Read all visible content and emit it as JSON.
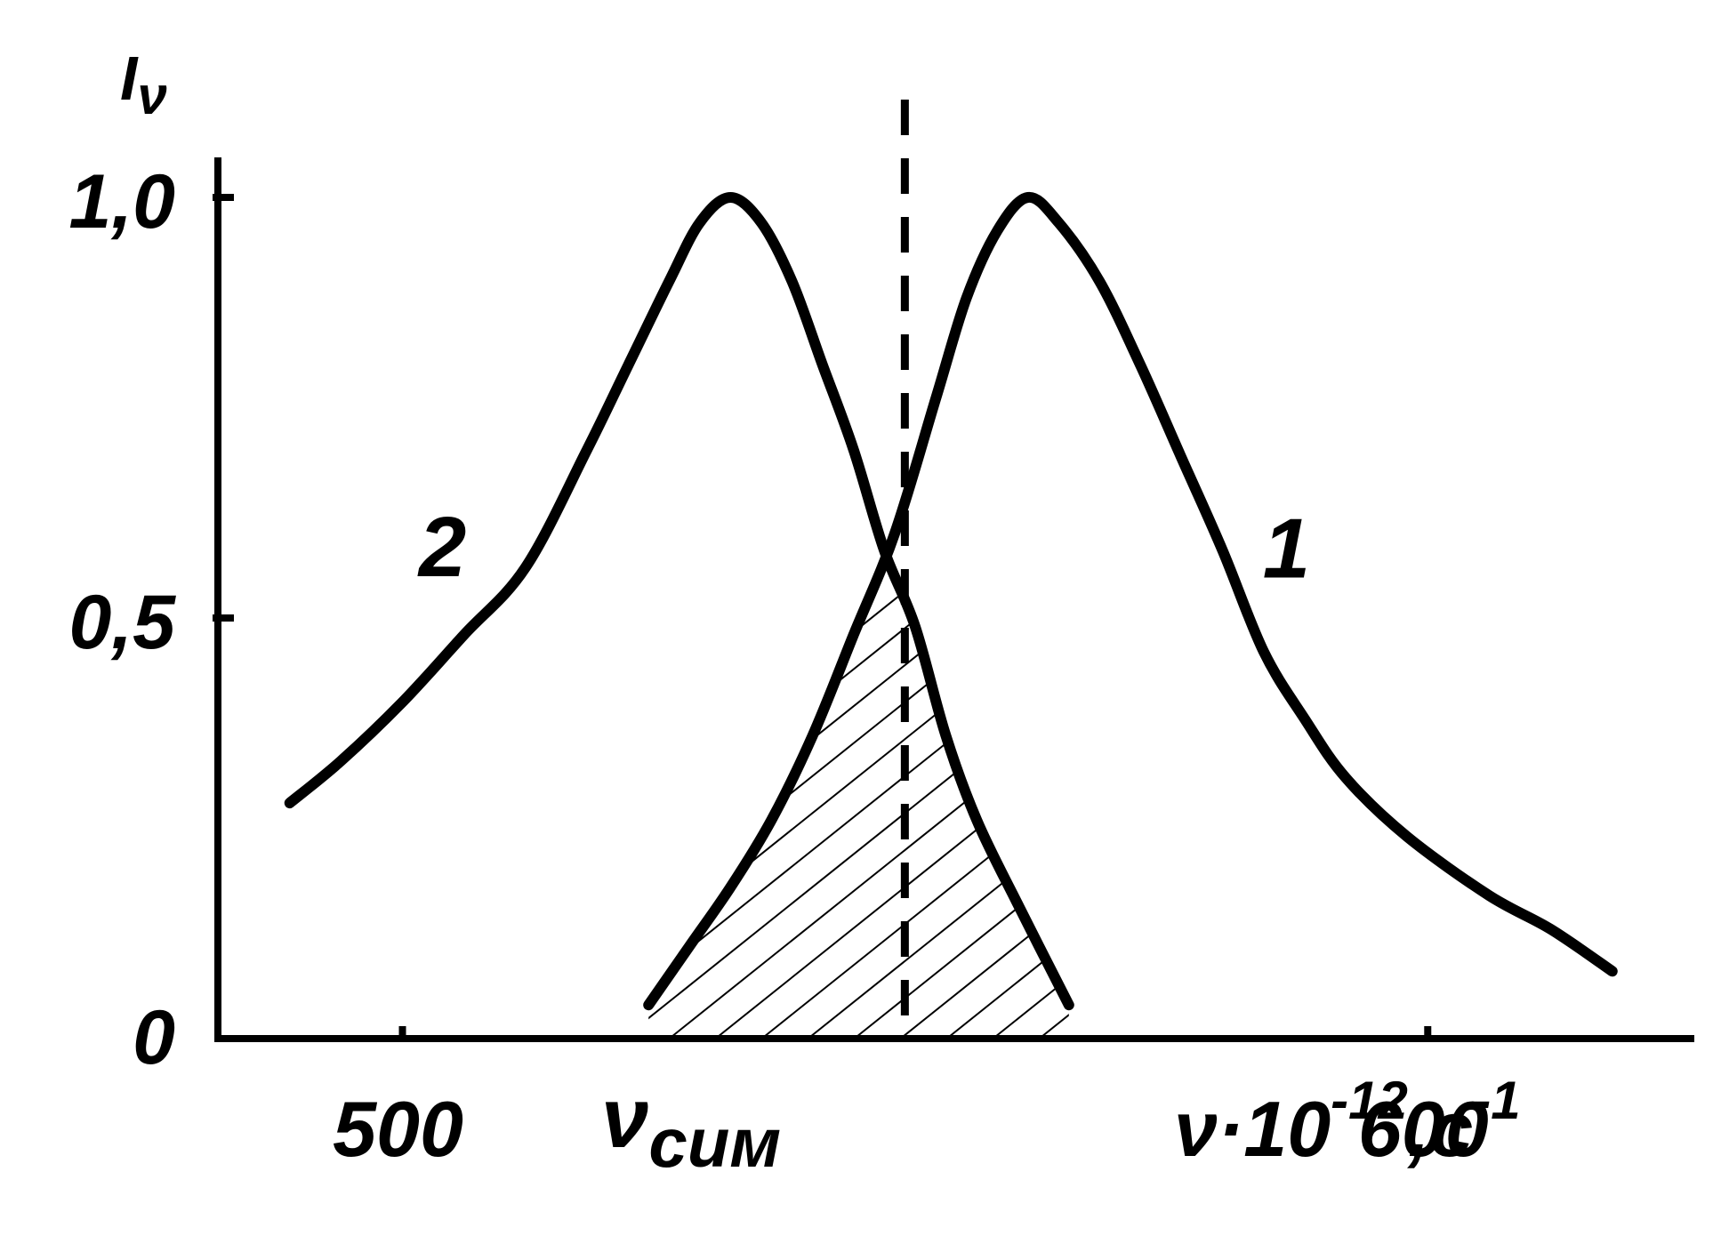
{
  "chart_data": {
    "type": "line",
    "title": "",
    "ylabel": {
      "base": "I",
      "sub": "ν"
    },
    "xlabel": {
      "symbol": "ν",
      "factor": "·10",
      "factor_exp": "-12",
      "unit": ",с",
      "unit_exp": "-1"
    },
    "xlim": [
      482,
      626
    ],
    "ylim": [
      0,
      1.0
    ],
    "x_ticks": [
      {
        "value": 500,
        "label": "500"
      },
      {
        "value": 600,
        "label": "600"
      }
    ],
    "y_ticks": [
      {
        "value": 0,
        "label": "0"
      },
      {
        "value": 0.5,
        "label": "0,5"
      },
      {
        "value": 1.0,
        "label": "1,0"
      }
    ],
    "marked_x": {
      "value": 549,
      "label_symbol": "ν",
      "label_sub": "сим",
      "style": "dashed"
    },
    "shaded_region": "overlap of curves 1 and 2 around ν_сим",
    "series": [
      {
        "name": "1",
        "x": [
          524,
          528,
          532,
          536,
          540,
          544,
          548,
          552,
          555,
          558,
          561,
          564,
          568,
          572,
          576,
          580,
          584,
          588,
          592,
          598,
          606,
          612,
          618
        ],
        "y": [
          0.04,
          0.11,
          0.18,
          0.26,
          0.36,
          0.48,
          0.6,
          0.76,
          0.88,
          0.96,
          1.0,
          0.97,
          0.9,
          0.8,
          0.69,
          0.58,
          0.46,
          0.38,
          0.31,
          0.24,
          0.17,
          0.13,
          0.08
        ]
      },
      {
        "name": "2",
        "x": [
          489,
          494,
          500,
          506,
          512,
          518,
          522,
          526,
          529,
          532,
          535,
          538,
          541,
          544,
          547,
          550,
          553,
          556,
          560,
          565
        ],
        "y": [
          0.28,
          0.33,
          0.4,
          0.48,
          0.56,
          0.7,
          0.8,
          0.9,
          0.97,
          1.0,
          0.97,
          0.9,
          0.8,
          0.7,
          0.58,
          0.49,
          0.36,
          0.26,
          0.16,
          0.04
        ]
      }
    ]
  }
}
